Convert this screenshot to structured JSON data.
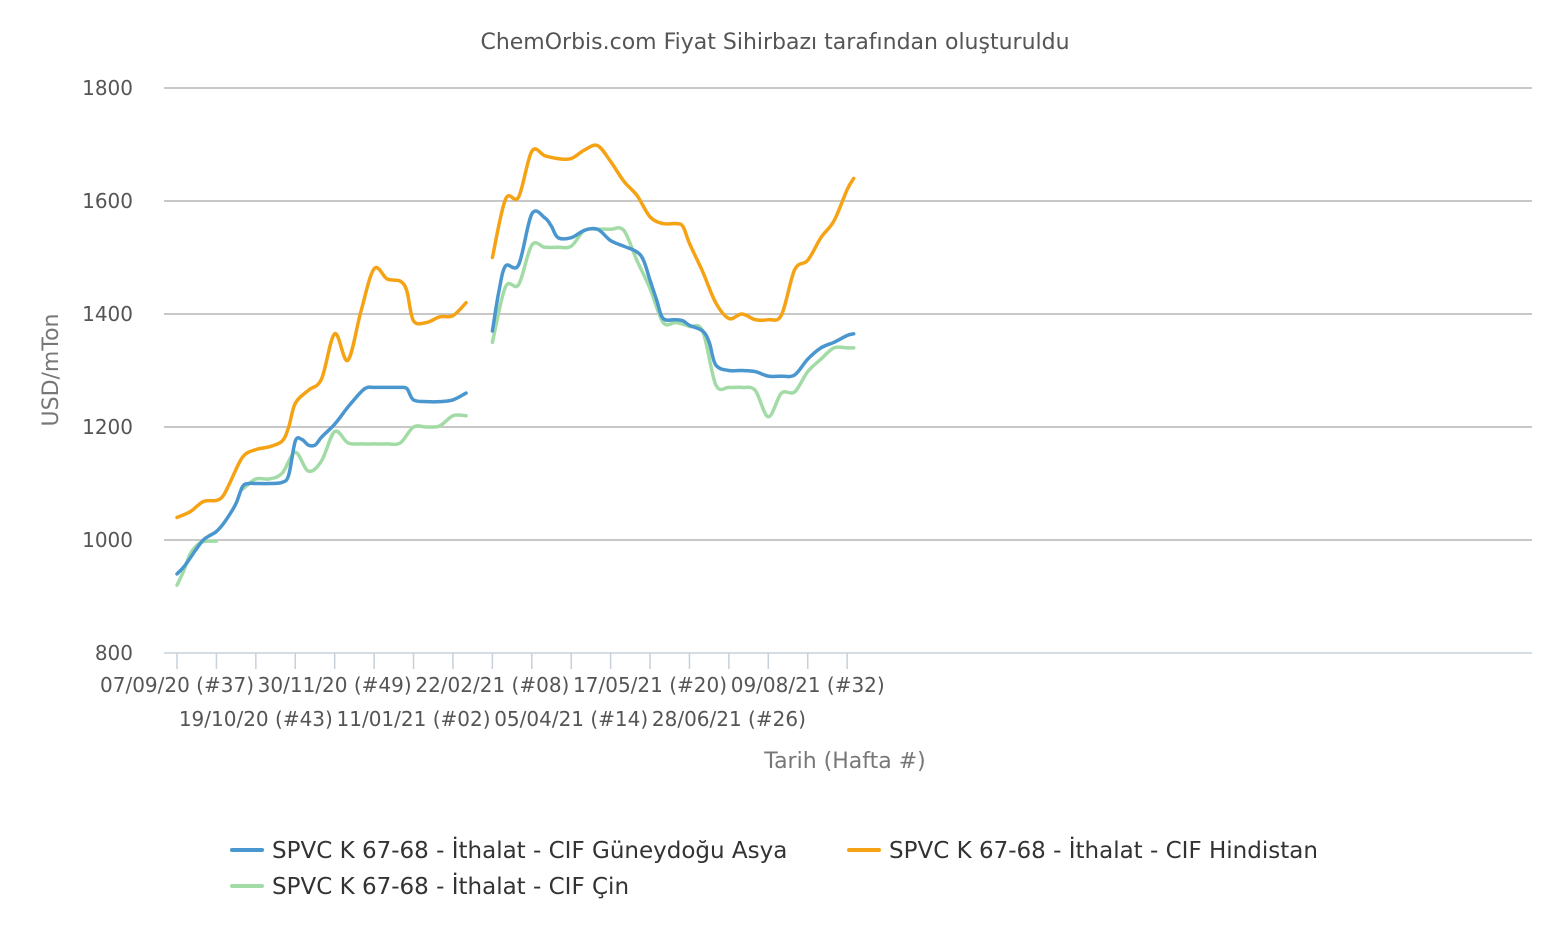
{
  "chart_data": {
    "type": "line",
    "title": "ChemOrbis.com Fiyat Sihirbazı tarafından oluşturuldu",
    "xlabel": "Tarih (Hafta #)",
    "ylabel": "USD/mTon",
    "ylim": [
      800,
      1800
    ],
    "yticks": [
      800,
      1000,
      1200,
      1400,
      1600,
      1800
    ],
    "grid": true,
    "legend_position": "bottom",
    "x_tick_labels": [
      {
        "week": 0,
        "label": "07/09/20 (#37)",
        "row": 1
      },
      {
        "week": 6,
        "label": "19/10/20 (#43)",
        "row": 2
      },
      {
        "week": 12,
        "label": "30/11/20 (#49)",
        "row": 1
      },
      {
        "week": 18,
        "label": "11/01/21 (#02)",
        "row": 2
      },
      {
        "week": 24,
        "label": "22/02/21 (#08)",
        "row": 1
      },
      {
        "week": 30,
        "label": "05/04/21 (#14)",
        "row": 2
      },
      {
        "week": 36,
        "label": "17/05/21 (#20)",
        "row": 1
      },
      {
        "week": 42,
        "label": "28/06/21 (#26)",
        "row": 2
      },
      {
        "week": 48,
        "label": "09/08/21 (#32)",
        "row": 1
      }
    ],
    "x_week_range": [
      -0.5,
      51.5
    ],
    "series": [
      {
        "name": "SPVC K 67-68 - İthalat - CIF Güneydoğu Asya",
        "color": "#4a96ce",
        "segments": [
          [
            [
              0,
              940
            ],
            [
              0.5,
              952
            ],
            [
              1,
              968
            ],
            [
              1.5,
              985
            ],
            [
              2,
              1000
            ],
            [
              2.5,
              1008
            ],
            [
              3,
              1015
            ],
            [
              3.5,
              1028
            ],
            [
              4,
              1045
            ],
            [
              4.5,
              1065
            ],
            [
              5,
              1095
            ],
            [
              5.5,
              1100
            ],
            [
              6,
              1100
            ],
            [
              7,
              1100
            ],
            [
              8,
              1102
            ],
            [
              8.5,
              1115
            ],
            [
              9,
              1175
            ],
            [
              9.5,
              1178
            ],
            [
              10,
              1168
            ],
            [
              10.5,
              1168
            ],
            [
              11,
              1182
            ],
            [
              12,
              1205
            ],
            [
              13,
              1235
            ],
            [
              14,
              1262
            ],
            [
              14.5,
              1270
            ],
            [
              15,
              1270
            ],
            [
              16,
              1270
            ],
            [
              17,
              1270
            ],
            [
              17.5,
              1268
            ],
            [
              18,
              1248
            ],
            [
              19,
              1245
            ],
            [
              20,
              1245
            ],
            [
              21,
              1248
            ],
            [
              22,
              1260
            ]
          ],
          [
            [
              24,
              1370
            ],
            [
              24.5,
              1440
            ],
            [
              25,
              1485
            ],
            [
              26,
              1487
            ],
            [
              27,
              1577
            ],
            [
              28,
              1570
            ],
            [
              28.5,
              1555
            ],
            [
              29,
              1535
            ],
            [
              30,
              1535
            ],
            [
              31,
              1548
            ],
            [
              32,
              1550
            ],
            [
              33,
              1530
            ],
            [
              34,
              1520
            ],
            [
              35,
              1510
            ],
            [
              35.5,
              1495
            ],
            [
              36,
              1460
            ],
            [
              36.5,
              1425
            ],
            [
              37,
              1392
            ],
            [
              38,
              1390
            ],
            [
              38.5,
              1388
            ],
            [
              39,
              1380
            ],
            [
              40,
              1370
            ],
            [
              40.5,
              1350
            ],
            [
              41,
              1310
            ],
            [
              42,
              1300
            ],
            [
              43,
              1300
            ],
            [
              44,
              1298
            ],
            [
              45,
              1290
            ],
            [
              46,
              1290
            ],
            [
              47,
              1292
            ],
            [
              48,
              1320
            ],
            [
              49,
              1340
            ],
            [
              50,
              1350
            ],
            [
              51,
              1362
            ],
            [
              51.5,
              1365
            ]
          ]
        ]
      },
      {
        "name": "SPVC K 67-68 - İthalat - CIF Hindistan",
        "color": "#f5a314",
        "segments": [
          [
            [
              0,
              1040
            ],
            [
              1,
              1050
            ],
            [
              2,
              1068
            ],
            [
              3,
              1070
            ],
            [
              3.5,
              1078
            ],
            [
              4,
              1100
            ],
            [
              5,
              1147
            ],
            [
              6,
              1160
            ],
            [
              7,
              1165
            ],
            [
              8,
              1175
            ],
            [
              8.5,
              1200
            ],
            [
              9,
              1242
            ],
            [
              10,
              1265
            ],
            [
              11,
              1285
            ],
            [
              12,
              1365
            ],
            [
              13,
              1318
            ],
            [
              14,
              1405
            ],
            [
              15,
              1480
            ],
            [
              16,
              1462
            ],
            [
              17,
              1458
            ],
            [
              17.5,
              1440
            ],
            [
              18,
              1388
            ],
            [
              19,
              1385
            ],
            [
              20,
              1395
            ],
            [
              21,
              1397
            ],
            [
              22,
              1420
            ]
          ],
          [
            [
              24,
              1500
            ],
            [
              25,
              1603
            ],
            [
              26,
              1607
            ],
            [
              27,
              1688
            ],
            [
              28,
              1680
            ],
            [
              29,
              1675
            ],
            [
              30,
              1675
            ],
            [
              31,
              1690
            ],
            [
              32,
              1698
            ],
            [
              33,
              1670
            ],
            [
              34,
              1635
            ],
            [
              35,
              1610
            ],
            [
              36,
              1572
            ],
            [
              37,
              1560
            ],
            [
              38,
              1560
            ],
            [
              38.5,
              1555
            ],
            [
              39,
              1525
            ],
            [
              40,
              1475
            ],
            [
              41,
              1420
            ],
            [
              42,
              1392
            ],
            [
              43,
              1400
            ],
            [
              44,
              1390
            ],
            [
              45,
              1390
            ],
            [
              46,
              1398
            ],
            [
              47,
              1478
            ],
            [
              48,
              1495
            ],
            [
              49,
              1535
            ],
            [
              50,
              1565
            ],
            [
              51,
              1620
            ],
            [
              51.5,
              1640
            ]
          ]
        ]
      },
      {
        "name": "SPVC K 67-68 - İthalat - CIF Çin",
        "color": "#a3dba6",
        "segments": [
          [
            [
              0,
              920
            ],
            [
              0.5,
              945
            ],
            [
              1,
              975
            ],
            [
              1.5,
              990
            ],
            [
              2,
              997
            ],
            [
              3,
              998
            ]
          ],
          [
            [
              5,
              1090
            ],
            [
              6,
              1108
            ],
            [
              7,
              1108
            ],
            [
              8,
              1118
            ],
            [
              9,
              1155
            ],
            [
              10,
              1122
            ],
            [
              11,
              1140
            ],
            [
              12,
              1192
            ],
            [
              13,
              1172
            ],
            [
              14,
              1170
            ],
            [
              15,
              1170
            ],
            [
              16,
              1170
            ],
            [
              17,
              1172
            ],
            [
              18,
              1200
            ],
            [
              19,
              1200
            ],
            [
              20,
              1202
            ],
            [
              21,
              1220
            ],
            [
              22,
              1220
            ]
          ],
          [
            [
              24,
              1350
            ],
            [
              25,
              1448
            ],
            [
              26,
              1452
            ],
            [
              27,
              1522
            ],
            [
              28,
              1518
            ],
            [
              29,
              1518
            ],
            [
              30,
              1520
            ],
            [
              31,
              1548
            ],
            [
              32,
              1550
            ],
            [
              33,
              1550
            ],
            [
              34,
              1548
            ],
            [
              35,
              1495
            ],
            [
              36,
              1445
            ],
            [
              37,
              1385
            ],
            [
              38,
              1385
            ],
            [
              39,
              1378
            ],
            [
              40,
              1370
            ],
            [
              41,
              1275
            ],
            [
              42,
              1270
            ],
            [
              43,
              1270
            ],
            [
              44,
              1265
            ],
            [
              45,
              1218
            ],
            [
              46,
              1260
            ],
            [
              47,
              1262
            ],
            [
              48,
              1298
            ],
            [
              49,
              1320
            ],
            [
              50,
              1340
            ],
            [
              51,
              1340
            ],
            [
              51.5,
              1340
            ]
          ]
        ]
      }
    ]
  }
}
